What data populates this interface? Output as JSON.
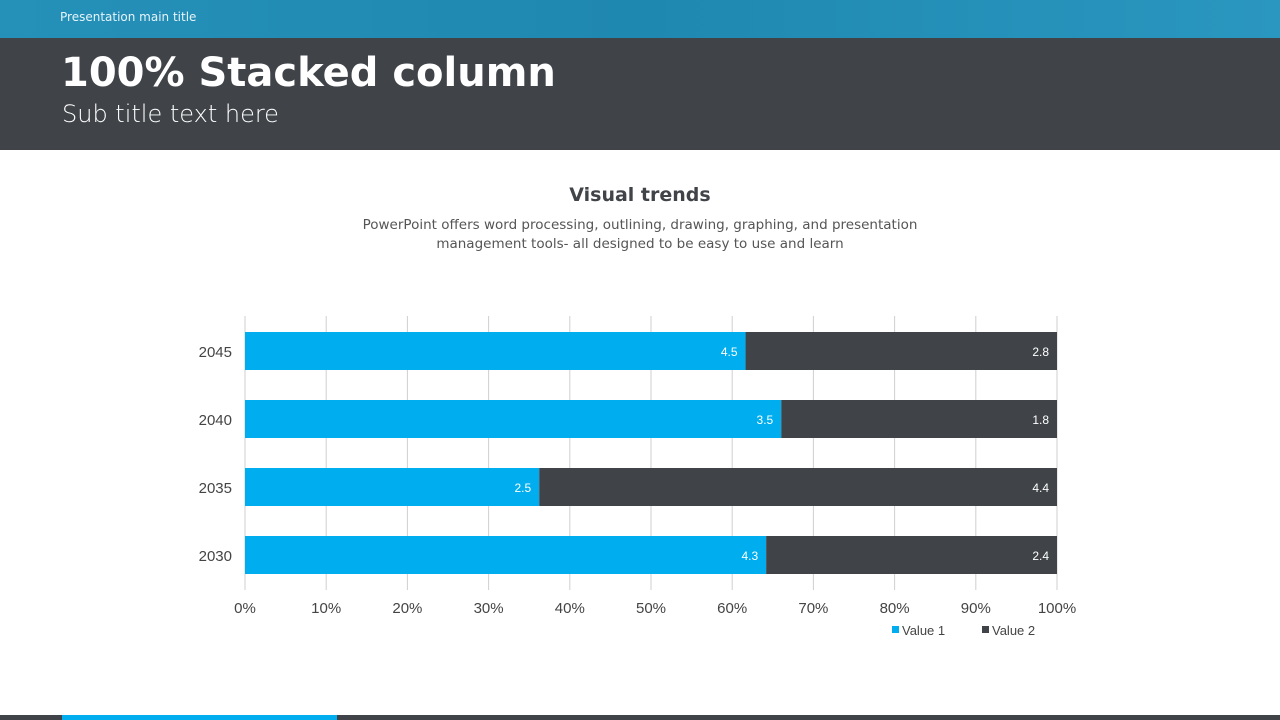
{
  "header": {
    "top_label": "Presentation main title",
    "title": "100% Stacked column",
    "subtitle": "Sub title text here"
  },
  "chart_data": {
    "type": "bar",
    "orientation": "horizontal",
    "stacked": "percent",
    "title": "Visual trends",
    "description": "PowerPoint offers word processing, outlining, drawing, graphing, and presentation management tools- all designed to be easy to use and learn",
    "categories": [
      "2045",
      "2040",
      "2035",
      "2030"
    ],
    "series": [
      {
        "name": "Value  1",
        "values": [
          4.5,
          3.5,
          2.5,
          4.3
        ],
        "color": "#00aeef"
      },
      {
        "name": "Value  2",
        "values": [
          2.8,
          1.8,
          4.4,
          2.4
        ],
        "color": "#404449"
      }
    ],
    "xticks": [
      "0%",
      "10%",
      "20%",
      "30%",
      "40%",
      "50%",
      "60%",
      "70%",
      "80%",
      "90%",
      "100%"
    ],
    "xlim": [
      0,
      100
    ],
    "grid": true,
    "legend": "bottom-right"
  }
}
